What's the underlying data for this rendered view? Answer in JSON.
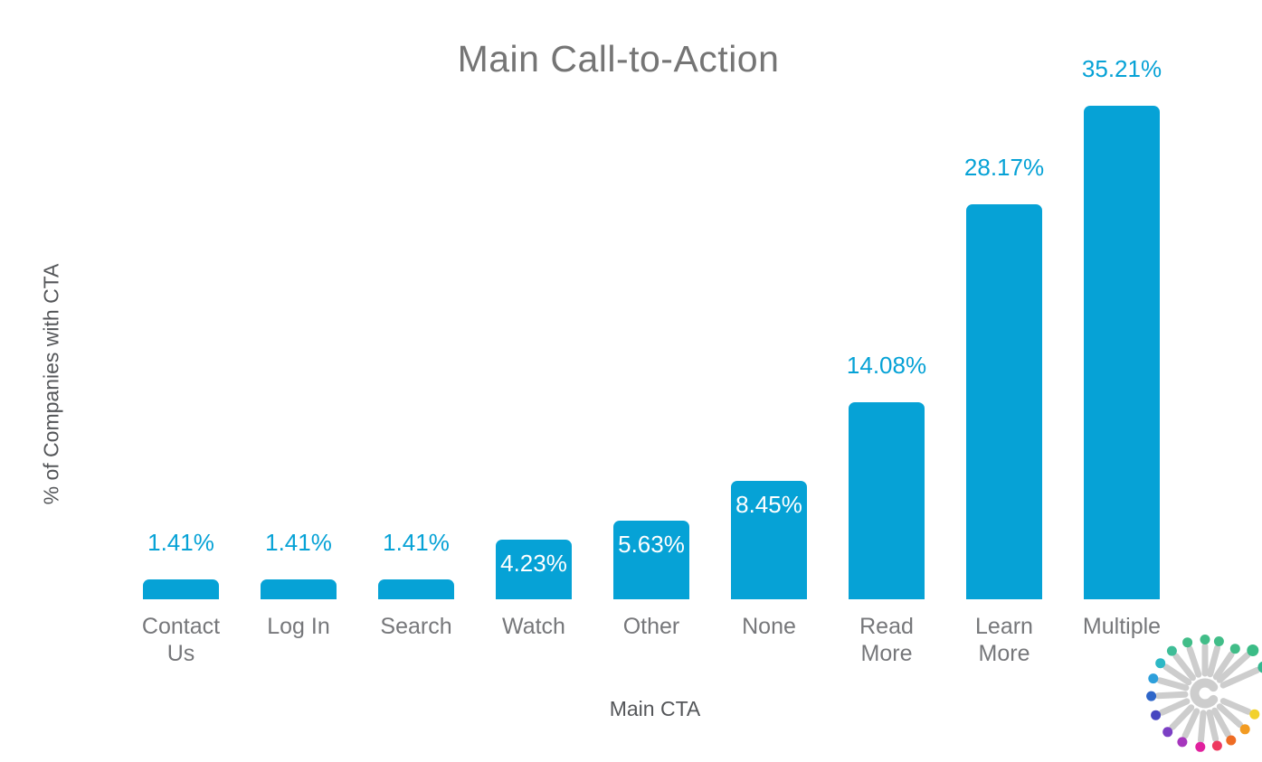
{
  "chart_data": {
    "type": "bar",
    "title": "Main Call-to-Action",
    "xlabel": "Main CTA",
    "ylabel": "% of Companies with CTA",
    "categories": [
      "Contact Us",
      "Log In",
      "Search",
      "Watch",
      "Other",
      "None",
      "Read More",
      "Learn More",
      "Multiple"
    ],
    "values": [
      1.41,
      1.41,
      1.41,
      4.23,
      5.63,
      8.45,
      14.08,
      28.17,
      35.21
    ],
    "value_labels": [
      "1.41%",
      "1.41%",
      "1.41%",
      "4.23%",
      "5.63%",
      "8.45%",
      "14.08%",
      "28.17%",
      "35.21%"
    ],
    "label_inside": [
      false,
      false,
      false,
      true,
      true,
      true,
      false,
      false,
      false
    ],
    "ylim": [
      0,
      38
    ],
    "grid": false,
    "legend": "none",
    "bar_color": "#06a2d6",
    "value_label_color_outside": "#06a2d6",
    "value_label_color_inside": "#ffffff",
    "title_color": "#757575",
    "axis_label_color": "#545659",
    "category_label_color": "#76777a"
  },
  "logo": {
    "name": "radial-burst-logo",
    "stem_color": "#cdcdcd",
    "ring_color": "#cdcdcd",
    "spokes": [
      {
        "angle": 24,
        "color": "#35b78f",
        "long": true
      },
      {
        "angle": 42,
        "color": "#3bbc86",
        "long": true
      },
      {
        "angle": 56,
        "color": "#41bd88",
        "long": false
      },
      {
        "angle": 75,
        "color": "#41bd88",
        "long": false
      },
      {
        "angle": 90,
        "color": "#41bd88",
        "long": false
      },
      {
        "angle": 109,
        "color": "#41bd88",
        "long": false
      },
      {
        "angle": 128,
        "color": "#3fbd97",
        "long": false
      },
      {
        "angle": 146,
        "color": "#2db8c5",
        "long": false
      },
      {
        "angle": 164,
        "color": "#2d9fdb",
        "long": false
      },
      {
        "angle": 183,
        "color": "#2e66c9",
        "long": false
      },
      {
        "angle": 204,
        "color": "#4746c0",
        "long": false
      },
      {
        "angle": 226,
        "color": "#7b3fc4",
        "long": false
      },
      {
        "angle": 245,
        "color": "#a636bd",
        "long": false
      },
      {
        "angle": 265,
        "color": "#e0219e",
        "long": false
      },
      {
        "angle": 283,
        "color": "#ee3a5f",
        "long": false
      },
      {
        "angle": 299,
        "color": "#ee6c24",
        "long": false
      },
      {
        "angle": 318,
        "color": "#f29b22",
        "long": false
      },
      {
        "angle": 337,
        "color": "#f2d12c",
        "long": false
      }
    ]
  }
}
